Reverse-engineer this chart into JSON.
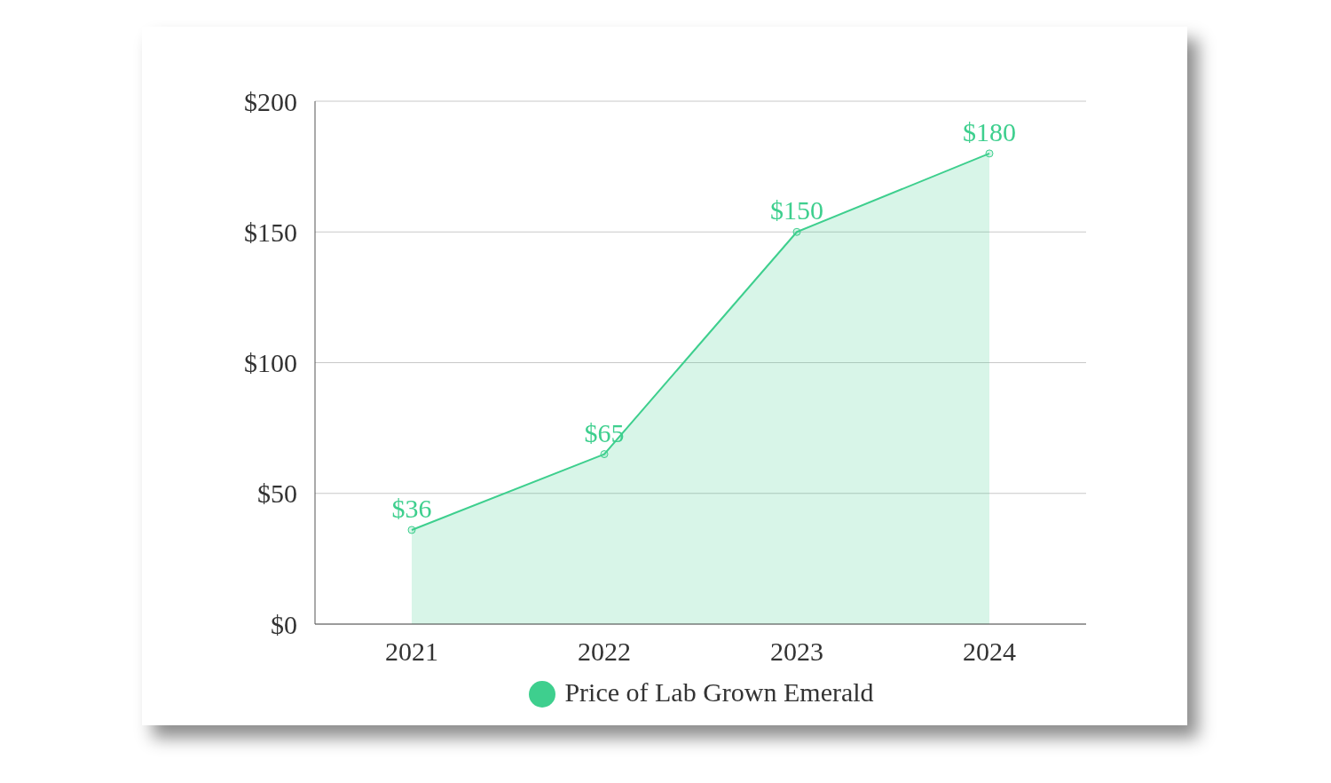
{
  "chart_data": {
    "type": "area",
    "categories": [
      "2021",
      "2022",
      "2023",
      "2024"
    ],
    "series": [
      {
        "name": "Price of Lab Grown Emerald",
        "color": "#3ecf8e",
        "values": [
          36,
          65,
          150,
          180
        ],
        "value_labels": [
          "$36",
          "$65",
          "$150",
          "$180"
        ]
      }
    ],
    "ylim": [
      0,
      200
    ],
    "yticks": [
      {
        "value": 0,
        "label": "$0"
      },
      {
        "value": 50,
        "label": "$50"
      },
      {
        "value": 100,
        "label": "$100"
      },
      {
        "value": 150,
        "label": "$150"
      },
      {
        "value": 200,
        "label": "$200"
      }
    ],
    "grid": "y",
    "legend": "bottom",
    "marker": "circle",
    "line_style": "solid"
  }
}
